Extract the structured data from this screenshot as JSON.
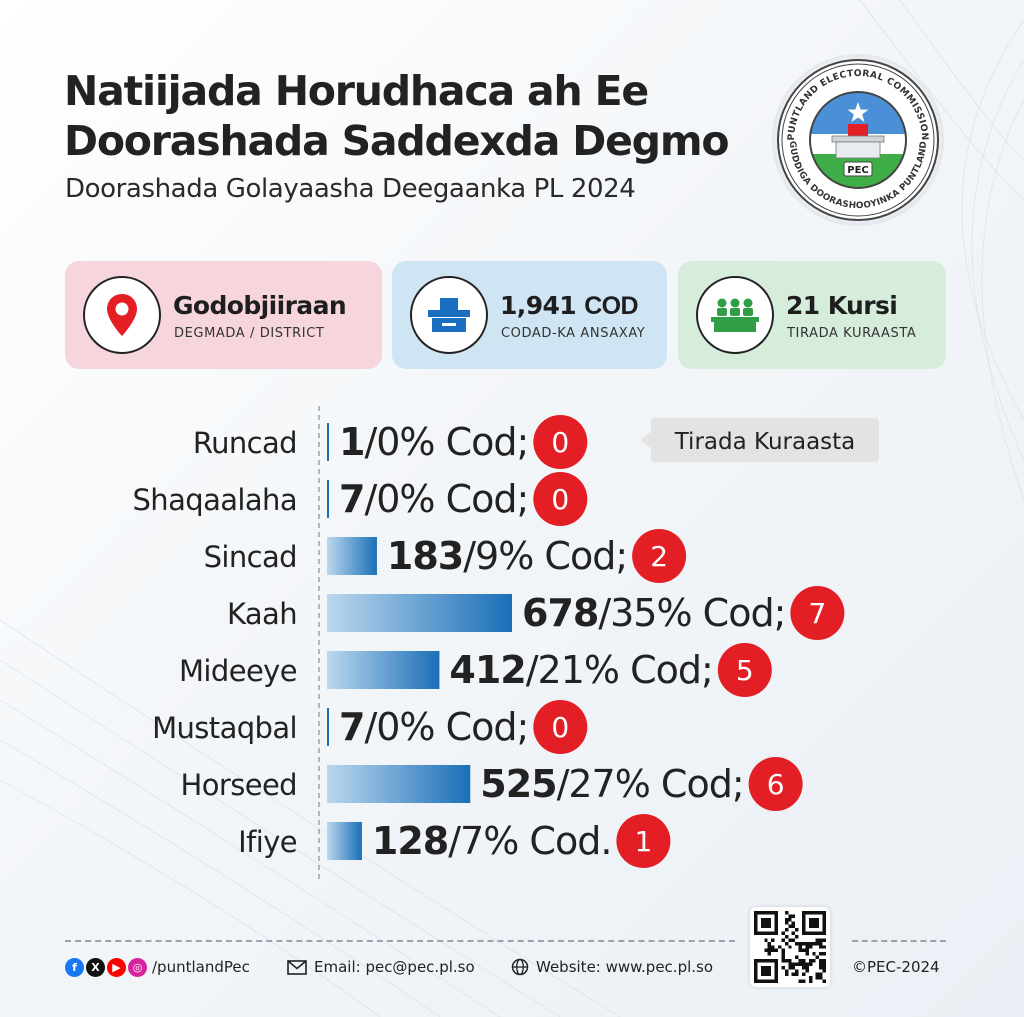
{
  "header": {
    "title_line1": "Natiijada Horudhaca ah Ee",
    "title_line2": "Doorashada Saddexda Degmo",
    "subtitle": "Doorashada Golayaasha Deegaanka PL 2024"
  },
  "logo": {
    "top_text": "PUNTLAND ELECTORAL COMMISSION",
    "bottom_text": "GUDDIGA DOORASHOOYINKA PUNTLAND",
    "badge": "PEC",
    "icon": "ballot-box-emblem"
  },
  "cards": {
    "district": {
      "value": "Godobjiiraan",
      "label": "DEGMADA / DISTRICT",
      "icon": "location-pin-icon",
      "color": "#f6d6dc"
    },
    "votes": {
      "value": "1,941",
      "unit": "COD",
      "label": "CODAD-KA ANSAXAY",
      "icon": "ballot-box-icon",
      "color": "#cfe5f3"
    },
    "seats": {
      "value": "21 Kursi",
      "label": "TIRADA KURAASTA",
      "icon": "council-seats-icon",
      "color": "#d6eddc"
    }
  },
  "chart_data": {
    "type": "bar",
    "orientation": "horizontal",
    "categories": [
      "Runcad",
      "Shaqaalaha",
      "Sincad",
      "Kaah",
      "Mideeye",
      "Mustaqbal",
      "Horseed",
      "Ifiye"
    ],
    "series": [
      {
        "values": [
          1,
          7,
          183,
          678,
          412,
          7,
          525,
          128
        ]
      }
    ],
    "percent_labels": [
      "/0% Cod;",
      "/0% Cod;",
      "/9% Cod;",
      "/35% Cod;",
      "/21% Cod;",
      "/0% Cod;",
      "/27% Cod;",
      "/7% Cod."
    ],
    "seats": [
      0,
      0,
      2,
      7,
      5,
      0,
      6,
      1
    ],
    "seats_legend": "Tirada Kuraasta",
    "bar_color_start": "#bcd7ee",
    "bar_color_end": "#1a6fb8",
    "badge_color": "#e31e24"
  },
  "footer": {
    "social_handle": "/puntlandPec",
    "email": "Email: pec@pec.pl.so",
    "website": "Website: www.pec.pl.so",
    "copyright": "©PEC-2024",
    "social_icons": [
      "facebook-icon",
      "x-icon",
      "youtube-icon",
      "instagram-icon"
    ],
    "social_colors": [
      "#1877f2",
      "#111111",
      "#ff0000",
      "#d6249f"
    ]
  }
}
